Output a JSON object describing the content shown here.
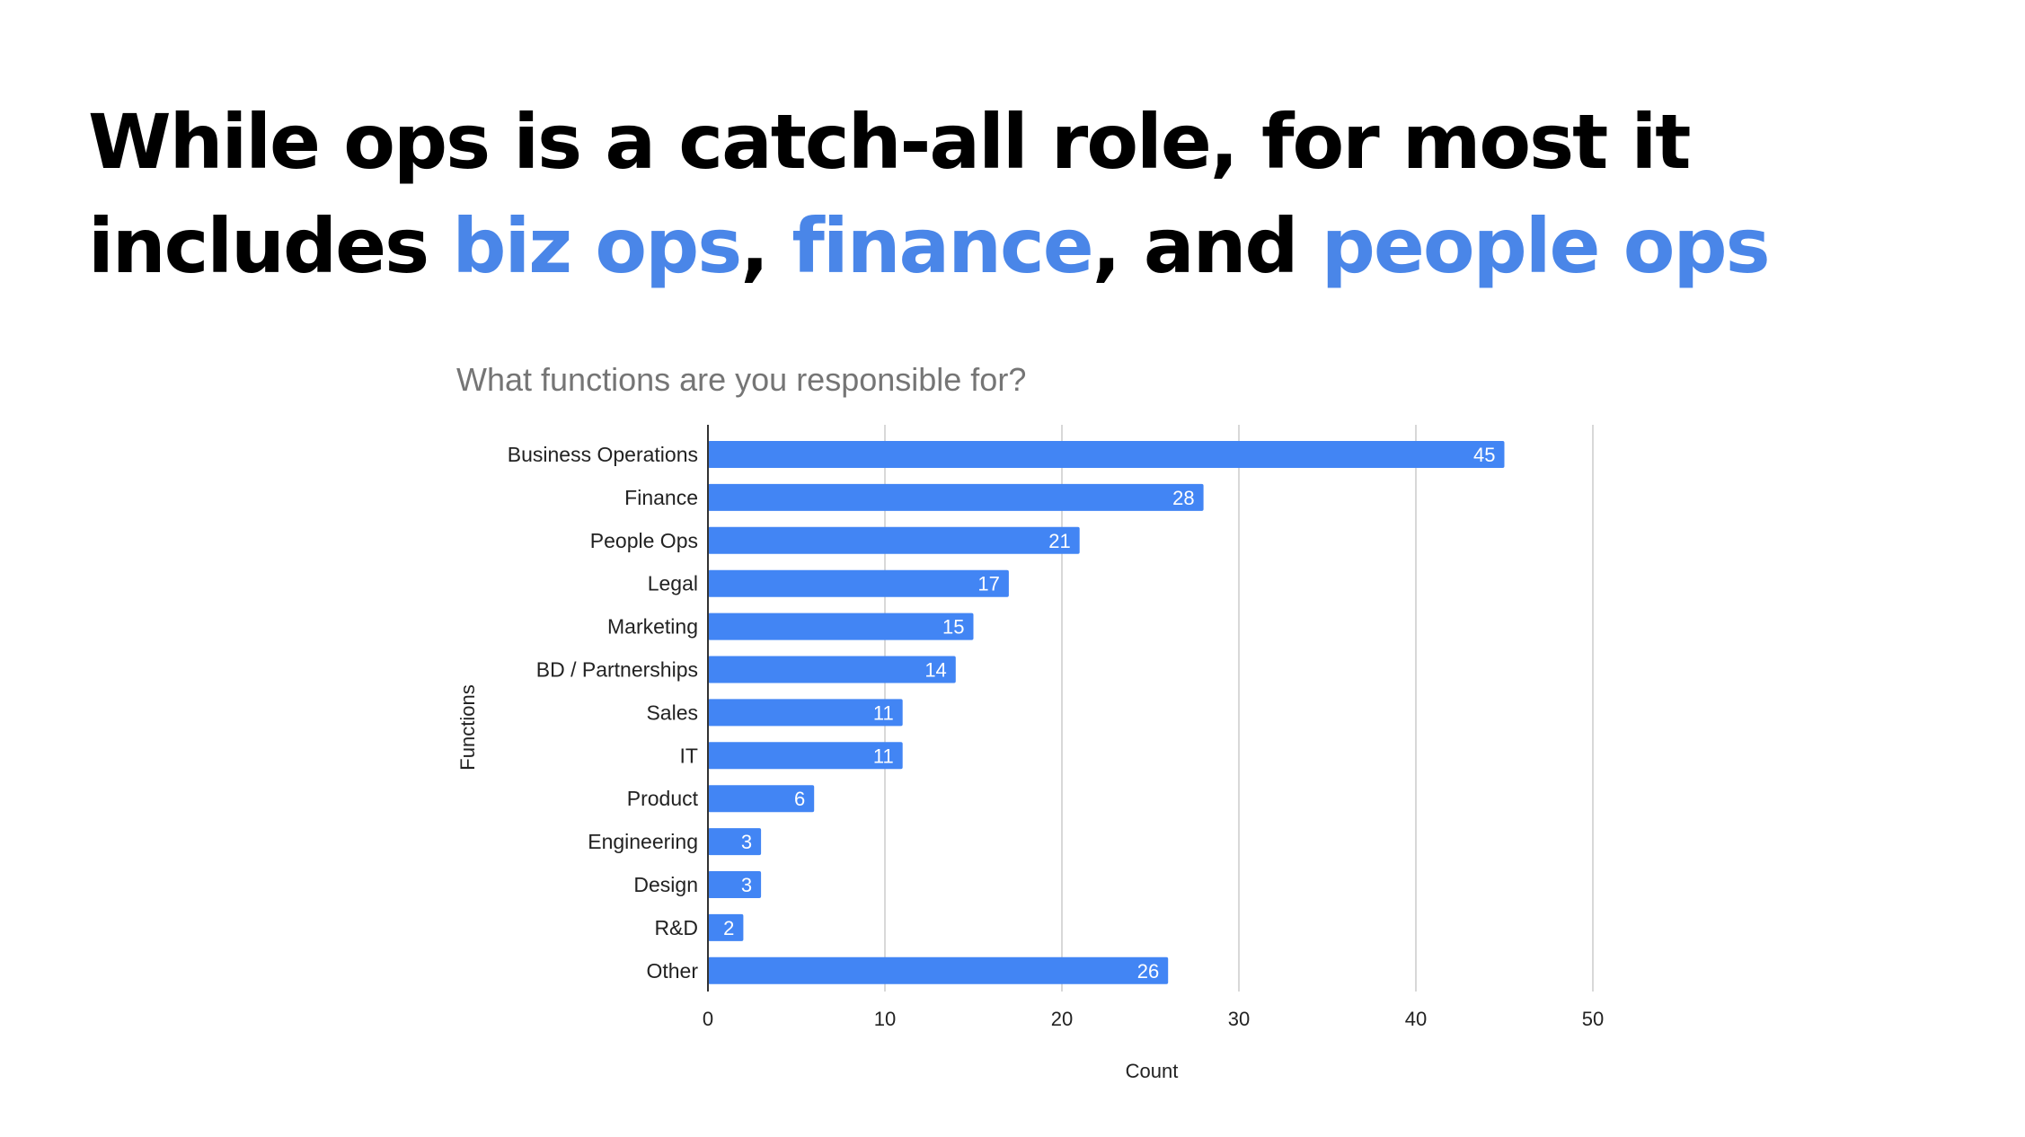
{
  "headline": {
    "line1": "While ops is a catch-all role, for most it",
    "line2_prefix": "includes ",
    "highlight1": "biz ops",
    "sep1": ", ",
    "highlight2": "finance",
    "sep2": ", and ",
    "highlight3": "people ops",
    "highlight_color": "#4a86e8"
  },
  "chart_data": {
    "type": "bar",
    "orientation": "horizontal",
    "title": "What functions are you responsible for?",
    "xlabel": "Count",
    "ylabel": "Functions",
    "categories": [
      "Business Operations",
      "Finance",
      "People Ops",
      "Legal",
      "Marketing",
      "BD / Partnerships",
      "Sales",
      "IT",
      "Product",
      "Engineering",
      "Design",
      "R&D",
      "Other"
    ],
    "values": [
      45,
      28,
      21,
      17,
      15,
      14,
      11,
      11,
      6,
      3,
      3,
      2,
      26
    ],
    "xlim": [
      0,
      50
    ],
    "xticks": [
      0,
      10,
      20,
      30,
      40,
      50
    ],
    "grid": "vertical",
    "legend": "none",
    "data_labels": true,
    "bar_color": "#4285f4"
  }
}
